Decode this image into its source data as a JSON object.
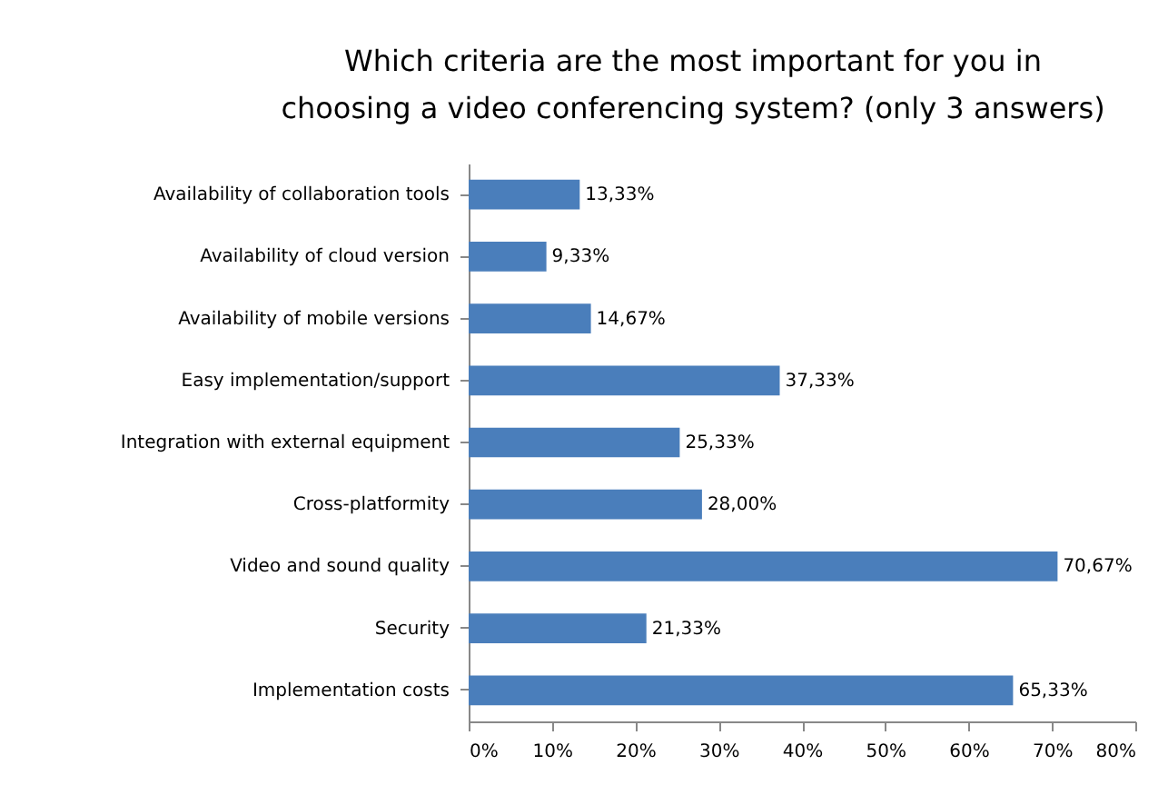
{
  "chart_data": {
    "type": "bar",
    "orientation": "horizontal",
    "title": "Which criteria are the most important for you in choosing a video conferencing system? (only 3 answers)",
    "categories": [
      "Availability of collaboration tools",
      "Availability of cloud version",
      "Availability of mobile versions",
      "Easy implementation/support",
      "Integration with external equipment",
      "Cross-platformity",
      "Video and sound quality",
      "Security",
      "Implementation costs"
    ],
    "values": [
      13.33,
      9.33,
      14.67,
      37.33,
      25.33,
      28.0,
      70.67,
      21.33,
      65.33
    ],
    "value_labels": [
      "13,33%",
      "9,33%",
      "14,67%",
      "37,33%",
      "25,33%",
      "28,00%",
      "70,67%",
      "21,33%",
      "65,33%"
    ],
    "color": "#4a7ebb",
    "xlim": [
      0,
      80
    ],
    "xticks": [
      {
        "value": 0,
        "label": "0%"
      },
      {
        "value": 10,
        "label": "10%"
      },
      {
        "value": 20,
        "label": "20%"
      },
      {
        "value": 30,
        "label": "30%"
      },
      {
        "value": 40,
        "label": "40%"
      },
      {
        "value": 50,
        "label": "50%"
      },
      {
        "value": 60,
        "label": "60%"
      },
      {
        "value": 70,
        "label": "70%"
      },
      {
        "value": 80,
        "label": "80%"
      }
    ],
    "grid": false
  }
}
